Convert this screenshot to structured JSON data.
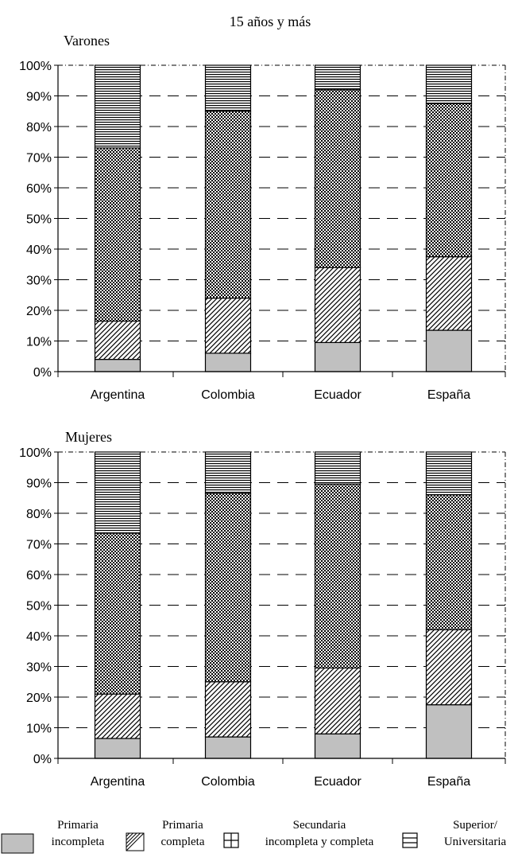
{
  "chart_data": {
    "type": "bar",
    "stacked": true,
    "title": "15 años y más",
    "categories": [
      "Argentina",
      "Colombia",
      "Ecuador",
      "España"
    ],
    "ylim": [
      0,
      100
    ],
    "yticks": [
      "0%",
      "10%",
      "20%",
      "30%",
      "40%",
      "50%",
      "60%",
      "70%",
      "80%",
      "90%",
      "100%"
    ],
    "legend": {
      "placement": "bottom",
      "entries": [
        {
          "key": "primaria-incompleta",
          "lines": [
            "Primaria",
            "incompleta"
          ]
        },
        {
          "key": "primaria-completa",
          "lines": [
            "Primaria",
            "completa"
          ]
        },
        {
          "key": "secundaria",
          "lines": [
            "Secundaria",
            "incompleta y completa"
          ]
        },
        {
          "key": "superior",
          "lines": [
            "Superior/",
            "Universitaria"
          ]
        }
      ]
    },
    "colors": {
      "primaria_incompleta": "#c0c0c0",
      "stroke": "#000000"
    },
    "panels": [
      {
        "subtitle": "Varones",
        "series": [
          {
            "key": "primaria-incompleta",
            "values": [
              4,
              6,
              9.5,
              13.5
            ]
          },
          {
            "key": "primaria-completa",
            "values": [
              12.5,
              18,
              24.5,
              24
            ]
          },
          {
            "key": "secundaria",
            "values": [
              56.5,
              61,
              58,
              50
            ]
          },
          {
            "key": "superior",
            "values": [
              27,
              15,
              8,
              12.5
            ]
          }
        ]
      },
      {
        "subtitle": "Mujeres",
        "series": [
          {
            "key": "primaria-incompleta",
            "values": [
              6.5,
              7,
              8,
              17.5
            ]
          },
          {
            "key": "primaria-completa",
            "values": [
              14.5,
              18,
              21.5,
              24.5
            ]
          },
          {
            "key": "secundaria",
            "values": [
              52.5,
              61.5,
              60,
              44
            ]
          },
          {
            "key": "superior",
            "values": [
              26.5,
              13.5,
              10.5,
              14
            ]
          }
        ]
      }
    ]
  }
}
